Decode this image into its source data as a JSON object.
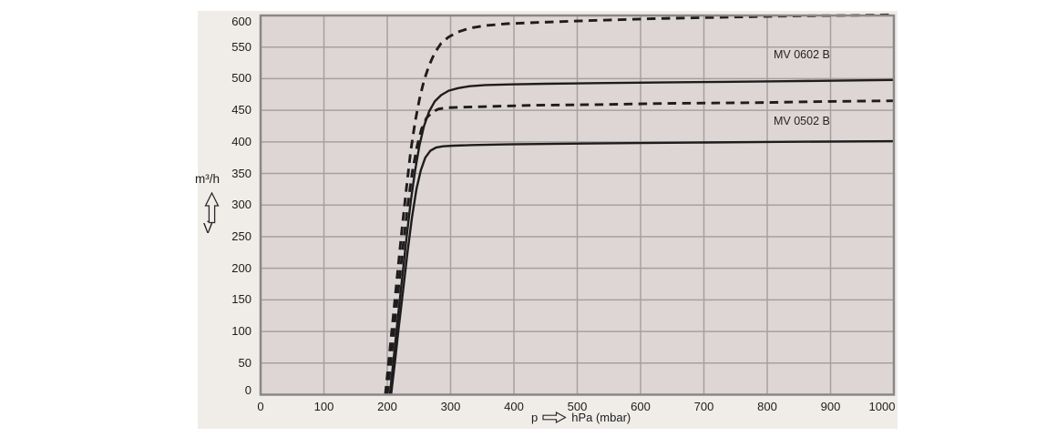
{
  "chart_data": {
    "type": "line",
    "title": "",
    "xlabel": "p (hPa (mbar))",
    "ylabel": "V (m3/h)",
    "xlim": [
      0,
      1000
    ],
    "ylim": [
      0,
      600
    ],
    "x_ticks": [
      0,
      100,
      200,
      300,
      400,
      500,
      600,
      700,
      800,
      900,
      1000
    ],
    "y_ticks": [
      0,
      50,
      100,
      150,
      200,
      250,
      300,
      350,
      400,
      450,
      500,
      550,
      600
    ],
    "grid": true,
    "legend_position": "none",
    "annotations": [
      {
        "text": "MV 0602 B"
      },
      {
        "text": "MV 0502 B"
      }
    ],
    "series": [
      {
        "name": "MV 0602 B (dashed)",
        "style": "dashed",
        "points": [
          [
            197,
            0
          ],
          [
            203,
            60
          ],
          [
            209,
            120
          ],
          [
            216,
            190
          ],
          [
            223,
            260
          ],
          [
            230,
            325
          ],
          [
            237,
            385
          ],
          [
            244,
            432
          ],
          [
            251,
            468
          ],
          [
            258,
            497
          ],
          [
            266,
            521
          ],
          [
            275,
            541
          ],
          [
            285,
            556
          ],
          [
            297,
            566
          ],
          [
            312,
            574
          ],
          [
            330,
            580
          ],
          [
            355,
            584
          ],
          [
            390,
            587
          ],
          [
            440,
            589
          ],
          [
            520,
            592
          ],
          [
            620,
            595
          ],
          [
            720,
            597
          ],
          [
            820,
            599
          ],
          [
            920,
            600
          ],
          [
            1000,
            601
          ]
        ]
      },
      {
        "name": "MV 0602 B (solid)",
        "style": "solid",
        "points": [
          [
            204,
            0
          ],
          [
            210,
            55
          ],
          [
            216,
            115
          ],
          [
            223,
            180
          ],
          [
            230,
            245
          ],
          [
            237,
            305
          ],
          [
            244,
            355
          ],
          [
            251,
            395
          ],
          [
            258,
            425
          ],
          [
            266,
            448
          ],
          [
            275,
            464
          ],
          [
            285,
            474
          ],
          [
            297,
            481
          ],
          [
            312,
            485
          ],
          [
            330,
            488
          ],
          [
            355,
            490
          ],
          [
            395,
            491
          ],
          [
            450,
            492
          ],
          [
            530,
            493
          ],
          [
            630,
            494
          ],
          [
            730,
            495
          ],
          [
            830,
            496
          ],
          [
            1000,
            498
          ]
        ]
      },
      {
        "name": "MV 0502 B (dashed)",
        "style": "dashed",
        "points": [
          [
            200,
            0
          ],
          [
            206,
            55
          ],
          [
            212,
            115
          ],
          [
            219,
            180
          ],
          [
            226,
            245
          ],
          [
            233,
            305
          ],
          [
            240,
            355
          ],
          [
            247,
            393
          ],
          [
            254,
            420
          ],
          [
            262,
            438
          ],
          [
            271,
            447
          ],
          [
            281,
            452
          ],
          [
            295,
            454
          ],
          [
            320,
            455
          ],
          [
            360,
            456
          ],
          [
            430,
            458
          ],
          [
            530,
            459
          ],
          [
            650,
            461
          ],
          [
            780,
            462
          ],
          [
            900,
            464
          ],
          [
            1000,
            465
          ]
        ]
      },
      {
        "name": "MV 0502 B (solid)",
        "style": "solid",
        "points": [
          [
            206,
            0
          ],
          [
            212,
            50
          ],
          [
            218,
            105
          ],
          [
            225,
            165
          ],
          [
            232,
            225
          ],
          [
            239,
            280
          ],
          [
            246,
            325
          ],
          [
            253,
            355
          ],
          [
            260,
            375
          ],
          [
            268,
            386
          ],
          [
            277,
            391
          ],
          [
            288,
            393
          ],
          [
            305,
            394
          ],
          [
            335,
            395
          ],
          [
            390,
            396
          ],
          [
            470,
            397
          ],
          [
            580,
            398
          ],
          [
            700,
            399
          ],
          [
            820,
            400
          ],
          [
            1000,
            401
          ]
        ]
      }
    ],
    "colors": {
      "panel_bg": "#f0ede9",
      "plot_bg": "#ded6d5",
      "grid": "#a5a0a1",
      "border": "#8a8689",
      "curve": "#1e1c1d",
      "text": "#1c1c1c"
    }
  },
  "labels": {
    "y_unit": "m³/h",
    "y_symbol": "V̇",
    "x_symbol": "p",
    "x_unit": "hPa (mbar)"
  }
}
